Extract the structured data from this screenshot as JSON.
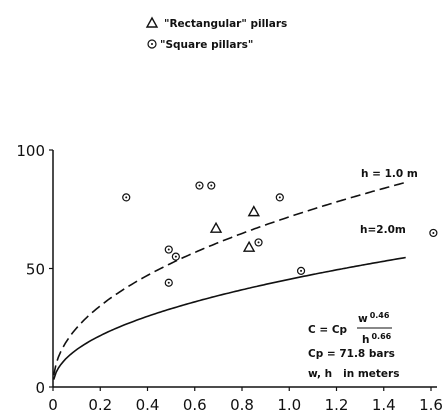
{
  "chart_data": {
    "type": "scatter",
    "title": "",
    "xlabel": "",
    "ylabel": "",
    "xlim": [
      0,
      1.6
    ],
    "ylim": [
      0,
      100
    ],
    "x_ticks": [
      "0",
      "0.2",
      "0.4",
      "0.6",
      "0.8",
      "1.0",
      "1.2",
      "1.4",
      "1.6"
    ],
    "y_ticks": [
      "0",
      "50",
      "100"
    ],
    "grid": false,
    "legend_position": "top-left",
    "series": [
      {
        "name": "\"Rectangular\" pillars",
        "marker": "triangle",
        "points": [
          {
            "x": 0.69,
            "y": 67
          },
          {
            "x": 0.83,
            "y": 59
          },
          {
            "x": 0.85,
            "y": 74
          }
        ]
      },
      {
        "name": "\"Square pillars\"",
        "marker": "circle-dot",
        "points": [
          {
            "x": 0.31,
            "y": 80
          },
          {
            "x": 0.49,
            "y": 58
          },
          {
            "x": 0.49,
            "y": 44
          },
          {
            "x": 0.52,
            "y": 55
          },
          {
            "x": 0.62,
            "y": 85
          },
          {
            "x": 0.67,
            "y": 85
          },
          {
            "x": 0.87,
            "y": 61
          },
          {
            "x": 0.96,
            "y": 80
          },
          {
            "x": 1.05,
            "y": 49
          },
          {
            "x": 1.61,
            "y": 65
          }
        ]
      }
    ],
    "curves": [
      {
        "label": "h = 1.0 m",
        "style": "dashed",
        "h": 1.0,
        "Cp": 71.8,
        "w_exp": 0.46,
        "h_exp": 0.66
      },
      {
        "label": "h=2.0m",
        "style": "solid",
        "h": 2.0,
        "Cp": 71.8,
        "w_exp": 0.46,
        "h_exp": 0.66
      }
    ],
    "annotations": {
      "formula_lhs": "C = Cp",
      "formula_num_base": "w",
      "formula_num_exp": "0.46",
      "formula_den_base": "h",
      "formula_den_exp": "0.66",
      "cp_value": "Cp = 71.8 bars",
      "units": "w, h   in meters"
    }
  }
}
